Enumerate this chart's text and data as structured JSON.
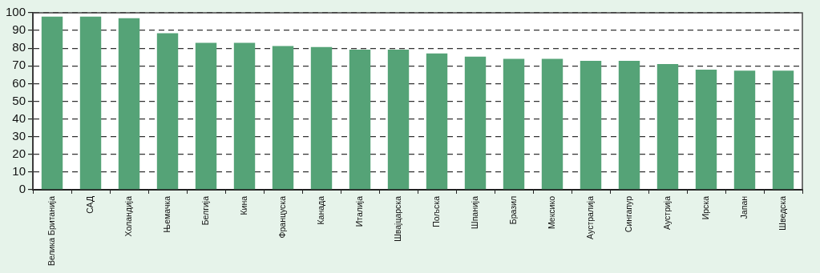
{
  "chart_data": {
    "type": "bar",
    "categories": [
      "Велика Британија",
      "САД",
      "Холандија",
      "Њемачка",
      "Белгија",
      "Кина",
      "Француска",
      "Канада",
      "Италија",
      "Швајцарска",
      "Пољска",
      "Шпанија",
      "Бразил",
      "Мексико",
      "Аустралија",
      "Сингапур",
      "Аустрија",
      "Ирска",
      "Јапан",
      "Шведска"
    ],
    "values": [
      97.8,
      97.8,
      96.9,
      88.5,
      83,
      83,
      81.2,
      80.6,
      79.2,
      79.2,
      77,
      75.2,
      74,
      74,
      72.8,
      72.8,
      71,
      67.9,
      67.3,
      67.3
    ],
    "color": "#55a377",
    "ylim": [
      0,
      100
    ],
    "yticks": [
      0,
      10,
      20,
      30,
      40,
      50,
      60,
      70,
      80,
      90,
      100
    ],
    "grid": "y",
    "line_style": "dashed"
  }
}
